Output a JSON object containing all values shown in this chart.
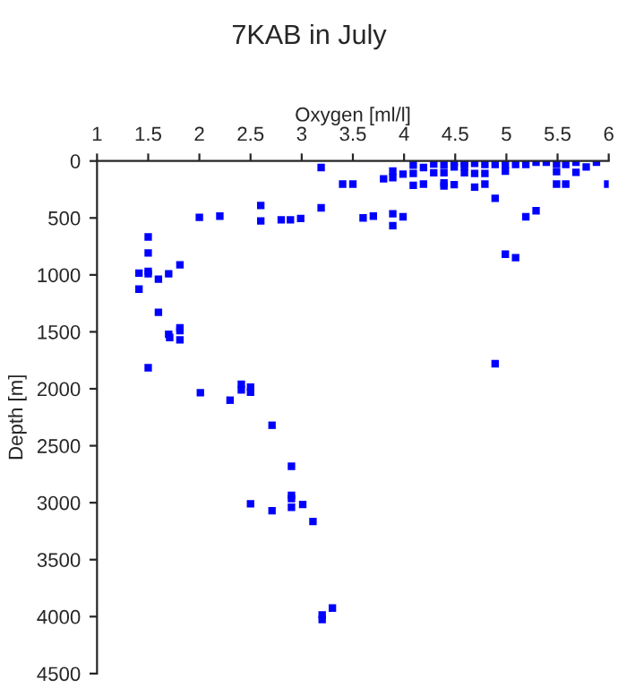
{
  "chart_data": {
    "type": "scatter",
    "title": "7KAB in July",
    "xlabel": "Oxygen [ml/l]",
    "ylabel": "Depth [m]",
    "x": [
      1.5,
      1.71,
      1.81,
      1.81,
      2.01,
      2.3,
      2.41,
      2.41,
      2.5,
      2.5,
      2.71,
      2.9,
      2.5,
      2.71,
      2.9,
      2.9,
      2.9,
      3.01,
      3.11,
      3.2,
      3.2,
      3.3,
      1.41,
      1.41,
      1.5,
      1.5,
      1.5,
      1.5,
      1.6,
      1.7,
      1.81,
      1.6,
      1.7,
      1.81,
      2.0,
      2.2,
      2.6,
      2.6,
      2.8,
      2.89,
      2.99,
      3.19,
      3.19,
      3.4,
      3.5,
      3.6,
      3.7,
      3.8,
      3.89,
      3.89,
      3.89,
      3.89,
      3.99,
      3.99,
      4.09,
      4.09,
      4.09,
      4.19,
      4.19,
      4.29,
      4.29,
      4.39,
      4.39,
      4.39,
      4.39,
      4.49,
      4.49,
      4.49,
      4.59,
      4.59,
      4.59,
      4.59,
      4.69,
      4.69,
      4.69,
      4.79,
      4.79,
      4.79,
      4.89,
      4.89,
      4.99,
      4.99,
      4.99,
      5.09,
      5.09,
      5.19,
      5.19,
      5.29,
      5.29,
      5.39,
      5.49,
      5.49,
      5.49,
      5.58,
      5.58,
      5.68,
      5.68,
      5.78,
      5.88,
      5.99,
      4.89
    ],
    "values": [
      1815,
      1550,
      1490,
      1570,
      2035,
      2100,
      1960,
      2010,
      1985,
      2030,
      2320,
      2680,
      3010,
      3070,
      2935,
      2965,
      3040,
      3015,
      3165,
      3985,
      4025,
      3925,
      985,
      1125,
      667,
      808,
      969,
      990,
      1037,
      990,
      911,
      1328,
      1521,
      1464,
      495,
      484,
      391,
      526,
      516,
      516,
      505,
      57,
      411,
      203,
      203,
      500,
      484,
      156,
      89,
      146,
      464,
      568,
      115,
      490,
      36,
      109,
      214,
      57,
      203,
      26,
      104,
      36,
      104,
      193,
      219,
      10,
      52,
      208,
      0,
      26,
      52,
      104,
      21,
      109,
      229,
      31,
      109,
      203,
      31,
      328,
      31,
      89,
      818,
      849,
      31,
      31,
      490,
      437,
      10,
      10,
      26,
      94,
      203,
      31,
      203,
      10,
      99,
      52,
      10,
      203,
      1780
    ],
    "color": "#0000ff",
    "marker": "square",
    "xlim": [
      1,
      6
    ],
    "xticks": [
      1,
      1.5,
      2,
      2.5,
      3,
      3.5,
      4,
      4.5,
      5,
      5.5,
      6
    ],
    "ylim": [
      4500,
      0
    ],
    "yticks": [
      0,
      500,
      1000,
      1500,
      2000,
      2500,
      3000,
      3500,
      4000,
      4500
    ],
    "grid": false,
    "legend": false
  }
}
